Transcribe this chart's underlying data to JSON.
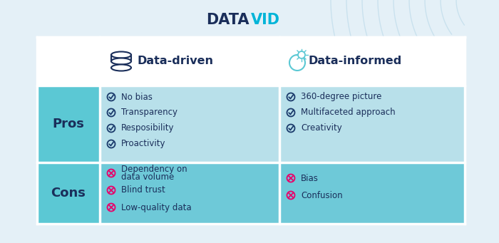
{
  "title_data": "DATA",
  "title_vid": "VID",
  "title_color_data": "#1a2e5a",
  "title_color_vid": "#00b4d8",
  "col1_header": "Data-driven",
  "col2_header": "Data-informed",
  "row1_label": "Pros",
  "row2_label": "Cons",
  "row_label_bg": "#5bc8d4",
  "row_label_color": "#1a2e5a",
  "pros_bg": "#b8e0ea",
  "cons_bg": "#6ec9d8",
  "header_text_color": "#1a2e5a",
  "pros_dd": [
    "No bias",
    "Transparency",
    "Resposibility",
    "Proactivity"
  ],
  "pros_di": [
    "360-degree picture",
    "Multifaceted approach",
    "Creativity"
  ],
  "cons_dd": [
    "Dependency on\ndata volume",
    "Blind trust",
    "Low-quality data"
  ],
  "cons_di": [
    "Bias",
    "Confusion"
  ],
  "check_color": "#1a3a6b",
  "cross_color": "#e8006a",
  "item_text_color": "#1a2e5a",
  "outer_bg": "#e4f0f7",
  "table_bg": "#ffffff",
  "wave_color": "#b8d8e8"
}
